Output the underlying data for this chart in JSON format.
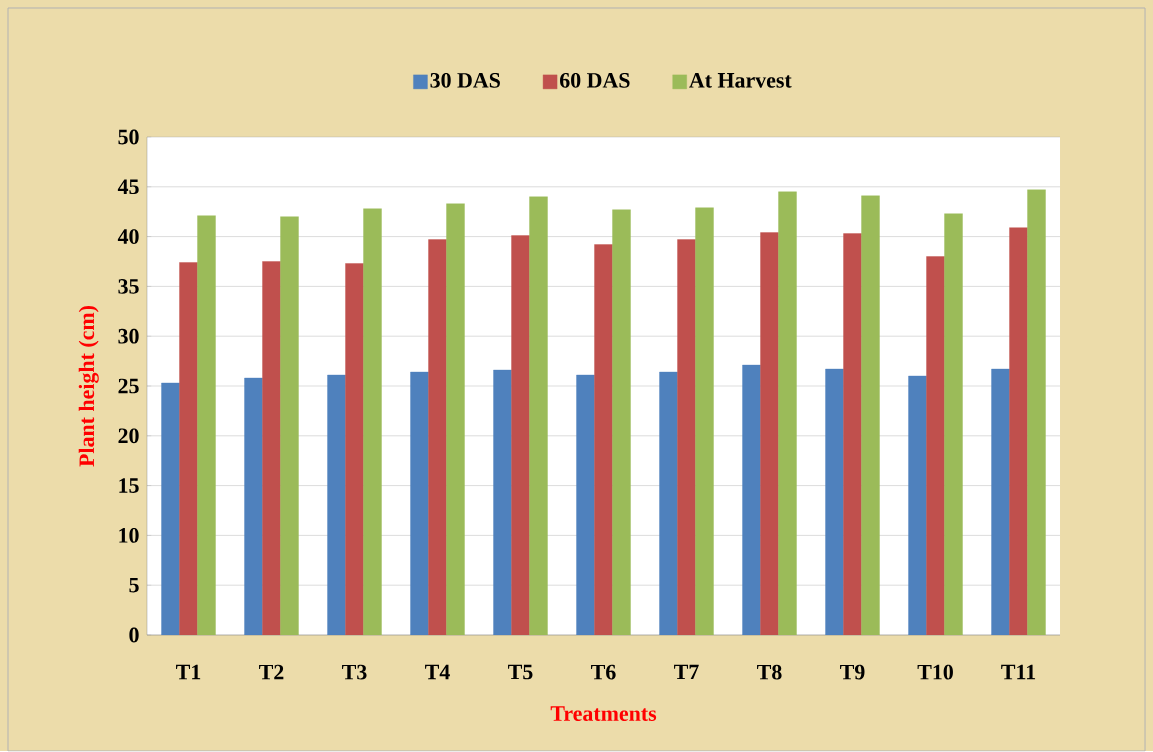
{
  "chart_data": {
    "type": "bar",
    "xlabel": "Treatments",
    "ylabel": "Plant  height (cm)",
    "categories": [
      "T1",
      "T2",
      "T3",
      "T4",
      "T5",
      "T6",
      "T7",
      "T8",
      "T9",
      "T10",
      "T11"
    ],
    "series": [
      {
        "name": "30 DAS",
        "color": "#4f81bd",
        "values": [
          25.3,
          25.8,
          26.1,
          26.4,
          26.6,
          26.1,
          26.4,
          27.1,
          26.7,
          26.0,
          26.7
        ]
      },
      {
        "name": "60 DAS",
        "color": "#c0504d",
        "values": [
          37.4,
          37.5,
          37.3,
          39.7,
          40.1,
          39.2,
          39.7,
          40.4,
          40.3,
          38.0,
          40.9
        ]
      },
      {
        "name": "At Harvest",
        "color": "#9bbb59",
        "values": [
          42.1,
          42.0,
          42.8,
          43.3,
          44.0,
          42.7,
          42.9,
          44.5,
          44.1,
          42.3,
          44.7
        ]
      }
    ],
    "ylim": [
      0,
      50
    ],
    "yticks": [
      0,
      5,
      10,
      15,
      20,
      25,
      30,
      35,
      40,
      45,
      50
    ],
    "grid": "y",
    "legend": "top"
  }
}
